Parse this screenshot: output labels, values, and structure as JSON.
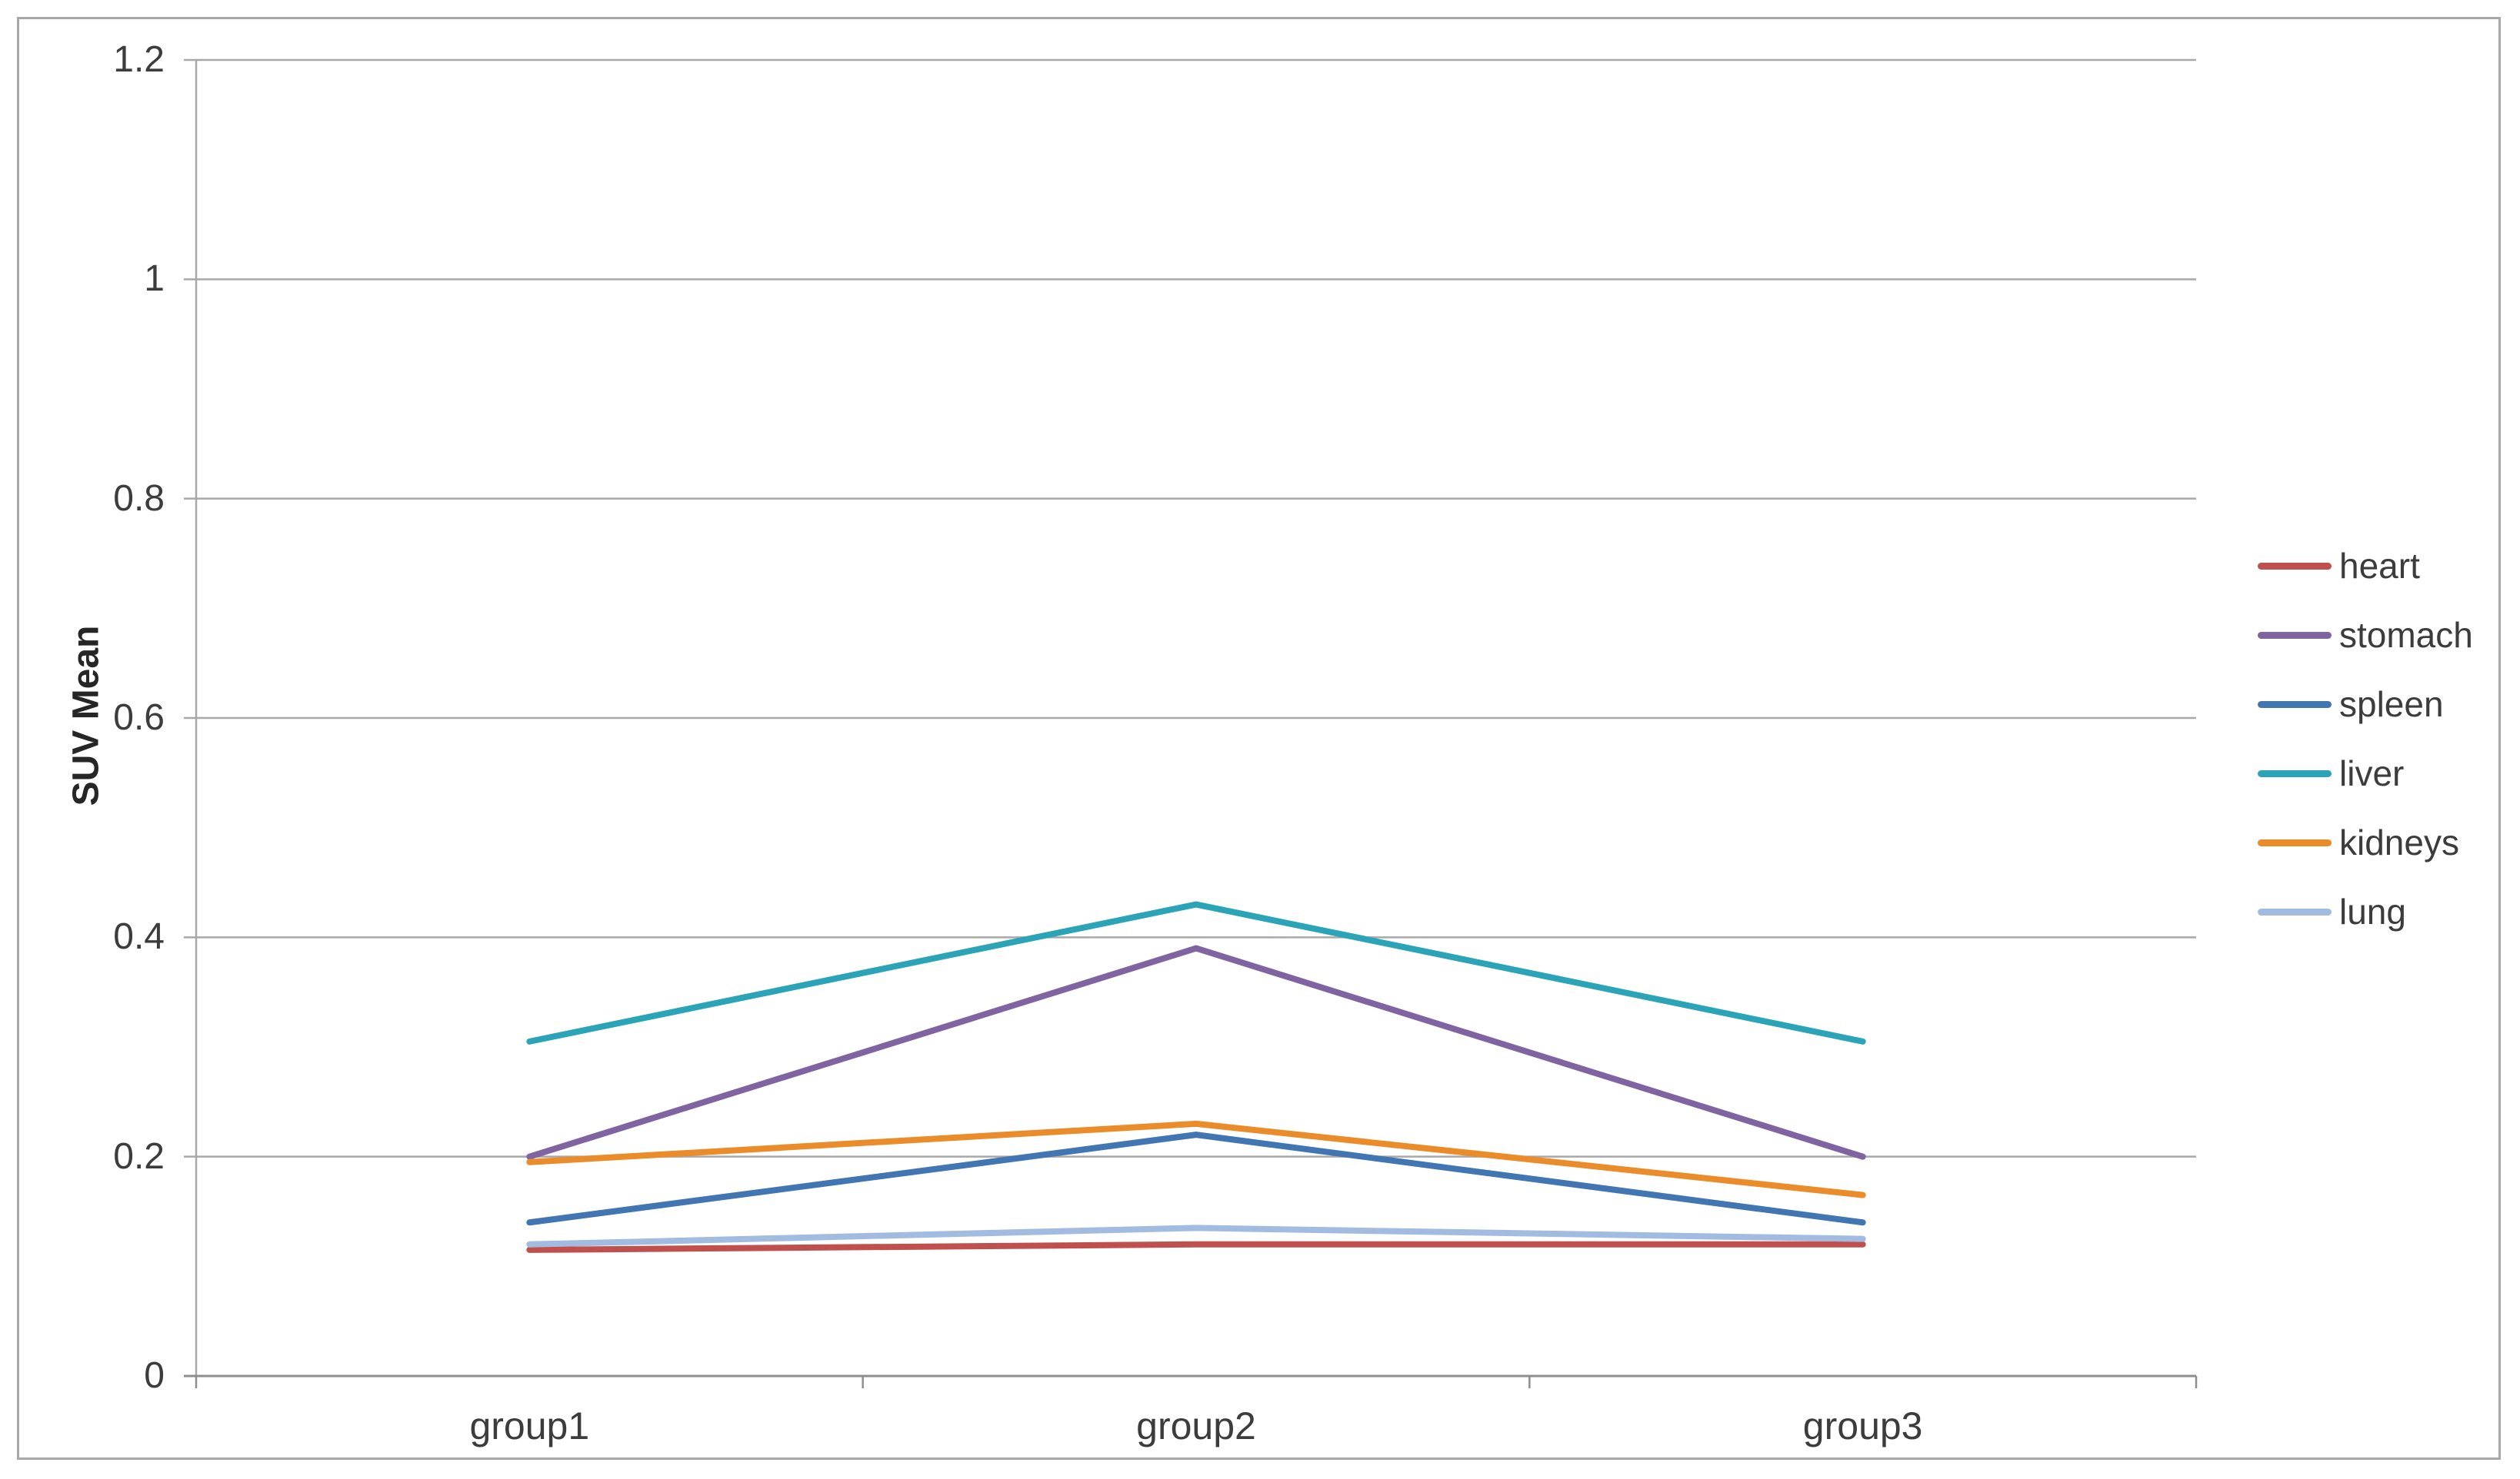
{
  "chart_data": {
    "type": "line",
    "title": "",
    "categories": [
      "group1",
      "group2",
      "group3"
    ],
    "series": [
      {
        "name": "heart",
        "color": "#c0504d",
        "values": [
          0.115,
          0.12,
          0.12
        ]
      },
      {
        "name": "stomach",
        "color": "#8064a2",
        "values": [
          0.2,
          0.39,
          0.2
        ]
      },
      {
        "name": "spleen",
        "color": "#4176b2",
        "values": [
          0.14,
          0.22,
          0.14
        ]
      },
      {
        "name": "liver",
        "color": "#2ca4b8",
        "values": [
          0.305,
          0.43,
          0.305
        ]
      },
      {
        "name": "kidneys",
        "color": "#eb8c2a",
        "values": [
          0.195,
          0.23,
          0.165
        ]
      },
      {
        "name": "lung",
        "color": "#a2bbe0",
        "values": [
          0.12,
          0.135,
          0.125
        ]
      }
    ],
    "xlabel": "",
    "ylabel": "SUV Mean",
    "ylim": [
      0,
      1.2
    ],
    "ytick_step": 0.2,
    "ytick_labels": [
      "0",
      "0.2",
      "0.4",
      "0.6",
      "0.8",
      "1",
      "1.2"
    ],
    "grid": true,
    "legend_position": "right"
  },
  "colors": {
    "background": "#ffffff",
    "frame_border": "#a8a8a8",
    "gridline": "#a8a8a8",
    "x_axis": "#8e8e8e",
    "y_axis": "#a8a8a8",
    "text": "#3c3c3c"
  }
}
